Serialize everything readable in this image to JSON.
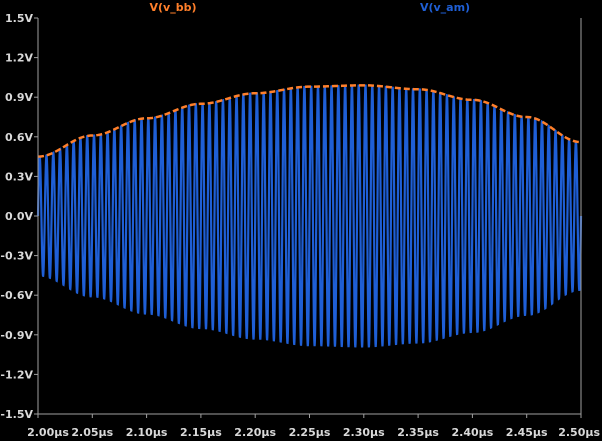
{
  "chart_data": {
    "type": "line",
    "title": "",
    "xlabel": "",
    "ylabel": "",
    "background": "#000000",
    "axis_color": "#a0a0a0",
    "tick_text_color": "#d9d9d9",
    "xlim": [
      2.0,
      2.5
    ],
    "ylim": [
      -1.5,
      1.5
    ],
    "x_ticks": [
      2.0,
      2.05,
      2.1,
      2.15,
      2.2,
      2.25,
      2.3,
      2.35,
      2.4,
      2.45,
      2.5
    ],
    "x_tick_labels": [
      "2.00µs",
      "2.05µs",
      "2.10µs",
      "2.15µs",
      "2.20µs",
      "2.25µs",
      "2.30µs",
      "2.35µs",
      "2.40µs",
      "2.45µs",
      "2.50µs"
    ],
    "y_ticks": [
      1.5,
      1.2,
      0.9,
      0.6,
      0.3,
      0.0,
      -0.3,
      -0.6,
      -0.9,
      -1.2,
      -1.5
    ],
    "y_tick_labels": [
      "1.5V",
      "1.2V",
      "0.9V",
      "0.6V",
      "0.3V",
      "0.0V",
      "-0.3V",
      "-0.6V",
      "-0.9V",
      "-1.2V",
      "-1.5V"
    ],
    "grid": false,
    "legend_placement": "top",
    "series": [
      {
        "name": "V(v_bb)",
        "color": "#ff7f2a",
        "style": "dashed",
        "kind": "envelope",
        "x": [
          2.0,
          2.05,
          2.1,
          2.15,
          2.2,
          2.25,
          2.3,
          2.35,
          2.4,
          2.45,
          2.5
        ],
        "y": [
          0.45,
          0.61,
          0.74,
          0.85,
          0.93,
          0.98,
          0.99,
          0.96,
          0.88,
          0.75,
          0.56
        ]
      },
      {
        "name": "V(v_am)",
        "color": "#1f5fd6",
        "style": "solid",
        "kind": "modulated",
        "carrier_cycles": 80
      }
    ]
  }
}
